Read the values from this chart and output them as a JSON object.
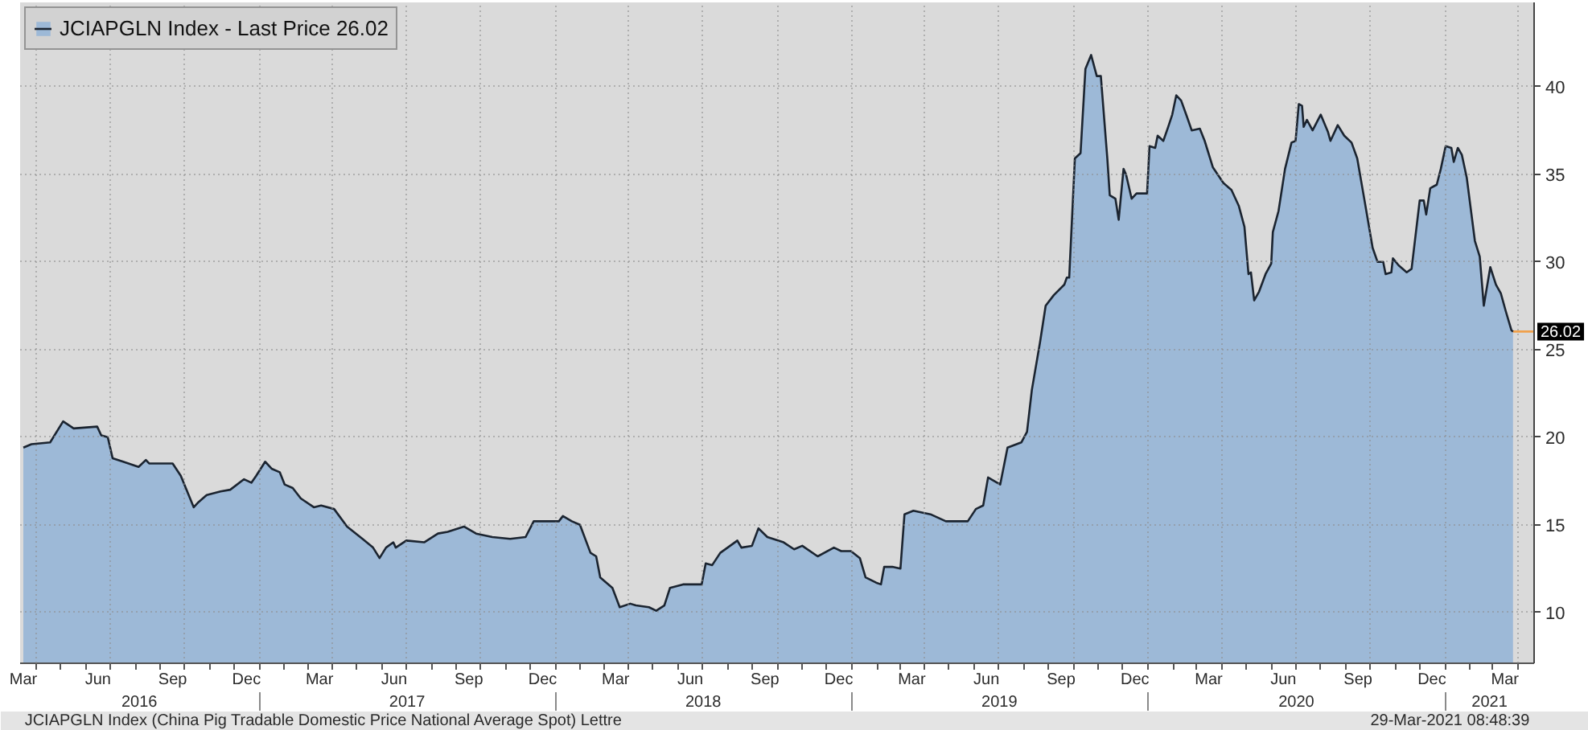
{
  "chart_data": {
    "type": "area",
    "x": [
      "2016-03-16",
      "2016-03-26",
      "2016-04-18",
      "2016-05-04",
      "2016-05-17",
      "2016-06-15",
      "2016-06-20",
      "2016-06-28",
      "2016-07-04",
      "2016-07-17",
      "2016-08-05",
      "2016-08-14",
      "2016-08-18",
      "2016-09-16",
      "2016-09-26",
      "2016-10-12",
      "2016-10-18",
      "2016-10-28",
      "2016-11-14",
      "2016-11-26",
      "2016-12-13",
      "2016-12-22",
      "2016-12-28",
      "2017-01-08",
      "2017-01-16",
      "2017-01-26",
      "2017-02-01",
      "2017-02-11",
      "2017-02-21",
      "2017-03-09",
      "2017-03-18",
      "2017-04-03",
      "2017-04-19",
      "2017-05-08",
      "2017-05-21",
      "2017-05-29",
      "2017-06-06",
      "2017-06-15",
      "2017-06-18",
      "2017-07-01",
      "2017-07-23",
      "2017-08-09",
      "2017-08-21",
      "2017-09-10",
      "2017-09-25",
      "2017-10-15",
      "2017-11-06",
      "2017-11-25",
      "2017-12-05",
      "2018-01-05",
      "2018-01-10",
      "2018-01-21",
      "2018-01-31",
      "2018-02-13",
      "2018-02-20",
      "2018-02-25",
      "2018-03-12",
      "2018-03-21",
      "2018-04-03",
      "2018-04-10",
      "2018-04-26",
      "2018-05-05",
      "2018-05-15",
      "2018-05-22",
      "2018-06-07",
      "2018-06-30",
      "2018-07-05",
      "2018-07-13",
      "2018-07-23",
      "2018-08-01",
      "2018-08-13",
      "2018-08-18",
      "2018-08-31",
      "2018-09-08",
      "2018-09-19",
      "2018-10-09",
      "2018-10-22",
      "2018-11-01",
      "2018-11-20",
      "2018-12-10",
      "2018-12-19",
      "2018-12-31",
      "2019-01-11",
      "2019-01-18",
      "2019-01-31",
      "2019-02-06",
      "2019-02-10",
      "2019-02-20",
      "2019-03-02",
      "2019-03-07",
      "2019-03-18",
      "2019-04-08",
      "2019-04-27",
      "2019-05-24",
      "2019-06-03",
      "2019-06-12",
      "2019-06-18",
      "2019-07-03",
      "2019-07-12",
      "2019-07-29",
      "2019-08-05",
      "2019-08-11",
      "2019-08-21",
      "2019-08-28",
      "2019-09-07",
      "2019-09-20",
      "2019-09-23",
      "2019-09-26",
      "2019-10-03",
      "2019-10-10",
      "2019-10-16",
      "2019-10-23",
      "2019-10-30",
      "2019-11-04",
      "2019-11-12",
      "2019-11-15",
      "2019-11-22",
      "2019-11-26",
      "2019-12-02",
      "2019-12-05",
      "2019-12-12",
      "2019-12-18",
      "2019-12-31",
      "2020-01-03",
      "2020-01-10",
      "2020-01-13",
      "2020-01-20",
      "2020-01-26",
      "2020-01-31",
      "2020-02-05",
      "2020-02-11",
      "2020-02-18",
      "2020-02-24",
      "2020-03-05",
      "2020-03-11",
      "2020-03-21",
      "2020-04-03",
      "2020-04-13",
      "2020-04-22",
      "2020-04-29",
      "2020-05-04",
      "2020-05-07",
      "2020-05-11",
      "2020-05-17",
      "2020-05-25",
      "2020-06-01",
      "2020-06-03",
      "2020-06-10",
      "2020-06-18",
      "2020-06-26",
      "2020-07-01",
      "2020-07-05",
      "2020-07-09",
      "2020-07-11",
      "2020-07-15",
      "2020-07-22",
      "2020-08-01",
      "2020-08-10",
      "2020-08-13",
      "2020-08-22",
      "2020-08-30",
      "2020-09-08",
      "2020-09-15",
      "2020-09-24",
      "2020-10-04",
      "2020-10-10",
      "2020-10-17",
      "2020-10-20",
      "2020-10-27",
      "2020-10-29",
      "2020-11-05",
      "2020-11-15",
      "2020-11-21",
      "2020-12-01",
      "2020-12-06",
      "2020-12-09",
      "2020-12-14",
      "2020-12-22",
      "2020-12-27",
      "2021-01-02",
      "2021-01-09",
      "2021-01-12",
      "2021-01-17",
      "2021-01-22",
      "2021-01-28",
      "2021-02-07",
      "2021-02-13",
      "2021-02-18",
      "2021-02-26",
      "2021-03-05",
      "2021-03-11",
      "2021-03-17",
      "2021-03-24",
      "2021-03-26"
    ],
    "series": [
      {
        "name": "JCIAPGLN Index - Last Price 26.02",
        "color": "#9db9d7",
        "values": [
          19.4,
          19.6,
          19.7,
          20.9,
          20.5,
          20.6,
          20.1,
          20.0,
          18.8,
          18.6,
          18.3,
          18.7,
          18.5,
          18.5,
          17.8,
          16.0,
          16.3,
          16.7,
          16.9,
          17.0,
          17.6,
          17.4,
          17.8,
          18.6,
          18.2,
          18.0,
          17.3,
          17.1,
          16.5,
          16.0,
          16.1,
          15.9,
          14.9,
          14.2,
          13.7,
          13.1,
          13.7,
          14.0,
          13.7,
          14.1,
          14.0,
          14.5,
          14.6,
          14.9,
          14.5,
          14.3,
          14.2,
          14.3,
          15.2,
          15.2,
          15.5,
          15.2,
          15.0,
          13.4,
          13.2,
          12.0,
          11.4,
          10.3,
          10.5,
          10.4,
          10.3,
          10.1,
          10.4,
          11.4,
          11.6,
          11.6,
          12.8,
          12.7,
          13.4,
          13.7,
          14.1,
          13.7,
          13.8,
          14.8,
          14.3,
          14.0,
          13.6,
          13.8,
          13.2,
          13.7,
          13.5,
          13.5,
          13.1,
          12.0,
          11.7,
          11.6,
          12.6,
          12.6,
          12.5,
          15.6,
          15.8,
          15.6,
          15.2,
          15.2,
          15.9,
          16.1,
          17.7,
          17.3,
          19.4,
          19.7,
          20.3,
          22.7,
          25.4,
          27.5,
          28.1,
          28.7,
          29.1,
          29.1,
          35.9,
          36.2,
          41.0,
          41.8,
          40.6,
          40.6,
          35.9,
          33.8,
          33.6,
          32.4,
          35.3,
          35.0,
          33.6,
          33.9,
          33.9,
          36.6,
          36.5,
          37.2,
          36.9,
          37.7,
          38.4,
          39.5,
          39.2,
          38.3,
          37.5,
          37.6,
          36.9,
          35.4,
          34.5,
          34.1,
          33.2,
          32.0,
          29.3,
          29.4,
          27.8,
          28.3,
          29.3,
          29.9,
          31.7,
          32.9,
          35.3,
          36.8,
          36.9,
          39.0,
          38.9,
          37.7,
          38.1,
          37.5,
          38.4,
          37.4,
          36.9,
          37.8,
          37.2,
          36.8,
          35.9,
          33.5,
          30.8,
          30.0,
          30.0,
          29.3,
          29.4,
          30.2,
          29.8,
          29.4,
          29.6,
          33.5,
          33.5,
          32.7,
          34.2,
          34.4,
          35.3,
          36.6,
          36.5,
          35.7,
          36.5,
          36.1,
          34.8,
          31.2,
          30.3,
          27.5,
          29.7,
          28.7,
          28.2,
          27.2,
          26.1,
          26.02
        ]
      }
    ],
    "xlim": [
      "2016-03-12",
      "2021-04-21"
    ],
    "xticks": [
      {
        "value": "2016-03-16",
        "label": "Mar"
      },
      {
        "value": "2016-06-16",
        "label": "Jun"
      },
      {
        "value": "2016-09-16",
        "label": "Sep"
      },
      {
        "value": "2016-12-16",
        "label": "Dec"
      },
      {
        "value": "2017-03-16",
        "label": "Mar"
      },
      {
        "value": "2017-06-16",
        "label": "Jun"
      },
      {
        "value": "2017-09-16",
        "label": "Sep"
      },
      {
        "value": "2017-12-16",
        "label": "Dec"
      },
      {
        "value": "2018-03-16",
        "label": "Mar"
      },
      {
        "value": "2018-06-16",
        "label": "Jun"
      },
      {
        "value": "2018-09-16",
        "label": "Sep"
      },
      {
        "value": "2018-12-16",
        "label": "Dec"
      },
      {
        "value": "2019-03-16",
        "label": "Mar"
      },
      {
        "value": "2019-06-16",
        "label": "Jun"
      },
      {
        "value": "2019-09-16",
        "label": "Sep"
      },
      {
        "value": "2019-12-16",
        "label": "Dec"
      },
      {
        "value": "2020-03-16",
        "label": "Mar"
      },
      {
        "value": "2020-06-16",
        "label": "Jun"
      },
      {
        "value": "2020-09-16",
        "label": "Sep"
      },
      {
        "value": "2020-12-16",
        "label": "Dec"
      },
      {
        "value": "2021-03-16",
        "label": "Mar"
      }
    ],
    "x2lim": [
      "2016-03-12",
      "2021-04-21"
    ],
    "x2ticks": [
      {
        "value": "2016-08-06",
        "label": "2016"
      },
      {
        "value": "2017-07-02",
        "label": "2017"
      },
      {
        "value": "2018-07-02",
        "label": "2018"
      },
      {
        "value": "2019-07-02",
        "label": "2019"
      },
      {
        "value": "2020-07-02",
        "label": "2020"
      },
      {
        "value": "2021-02-25",
        "label": "2021"
      }
    ],
    "ylim": [
      7.1,
      44.8
    ],
    "yticks": [
      10,
      15,
      20,
      25,
      30,
      35,
      40
    ],
    "grid": true,
    "legend": "top left",
    "ref_lines": [
      {
        "axis": "y",
        "value": 26.02,
        "label": "26.02",
        "color": "#f0a04b"
      }
    ],
    "annotations": [
      "JCIAPGLN Index (China Pig Tradable Domestic Price National Average Spot) Lettre",
      "29-Mar-2021 08:48:39"
    ]
  }
}
